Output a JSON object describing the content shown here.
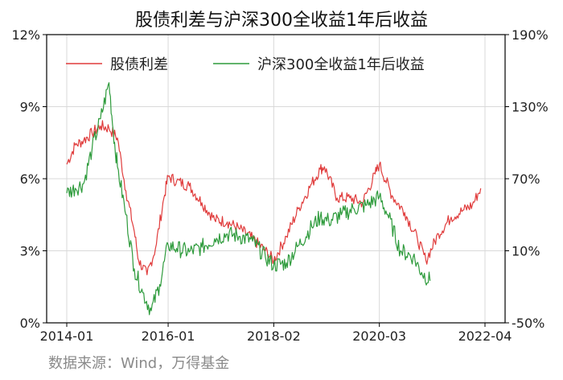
{
  "chart_data": {
    "type": "line",
    "title": "股债利差与沪深300全收益1年后收益",
    "source": "数据来源：Wind，万得基金",
    "x_ticks": [
      "2014-01",
      "2016-01",
      "2018-02",
      "2020-03",
      "2022-04"
    ],
    "y_left": {
      "ticks": [
        "0%",
        "3%",
        "6%",
        "9%",
        "12%"
      ],
      "lim": [
        0,
        12
      ]
    },
    "y_right": {
      "ticks": [
        "-50%",
        "10%",
        "70%",
        "130%",
        "190%"
      ],
      "lim": [
        -50,
        190
      ]
    },
    "legend_position": "top",
    "grid": true,
    "series": [
      {
        "name": "股债利差",
        "axis": "left",
        "color": "#e03c3c",
        "x": [
          "2014-01",
          "2014-03",
          "2014-05",
          "2014-07",
          "2014-09",
          "2014-11",
          "2015-01",
          "2015-03",
          "2015-05",
          "2015-06",
          "2015-08",
          "2015-10",
          "2015-12",
          "2016-01",
          "2016-03",
          "2016-06",
          "2016-09",
          "2016-12",
          "2017-03",
          "2017-06",
          "2017-09",
          "2017-12",
          "2018-02",
          "2018-05",
          "2018-08",
          "2018-11",
          "2019-01",
          "2019-02",
          "2019-05",
          "2019-08",
          "2019-11",
          "2020-02",
          "2020-03",
          "2020-06",
          "2020-09",
          "2020-12",
          "2021-02",
          "2021-05",
          "2021-08",
          "2021-11",
          "2022-01",
          "2022-03"
        ],
        "values": [
          6.6,
          7.4,
          7.6,
          7.9,
          8.2,
          8.1,
          7.7,
          5.5,
          3.8,
          2.6,
          2.0,
          3.1,
          5.2,
          6.1,
          5.9,
          5.7,
          5.0,
          4.3,
          4.2,
          3.9,
          3.5,
          3.0,
          2.6,
          3.6,
          4.8,
          5.8,
          6.4,
          6.5,
          5.2,
          5.2,
          5.0,
          6.2,
          6.6,
          5.3,
          4.6,
          3.5,
          2.6,
          3.7,
          4.4,
          4.7,
          4.9,
          5.6
        ]
      },
      {
        "name": "沪深300全收益1年后收益",
        "axis": "right",
        "color": "#2e9b3c",
        "x": [
          "2014-01",
          "2014-03",
          "2014-05",
          "2014-07",
          "2014-09",
          "2014-11",
          "2014-12",
          "2015-01",
          "2015-03",
          "2015-05",
          "2015-07",
          "2015-09",
          "2015-11",
          "2016-01",
          "2016-03",
          "2016-06",
          "2016-09",
          "2016-12",
          "2017-03",
          "2017-06",
          "2017-09",
          "2017-12",
          "2018-02",
          "2018-05",
          "2018-08",
          "2018-11",
          "2019-01",
          "2019-03",
          "2019-06",
          "2019-09",
          "2019-12",
          "2020-03",
          "2020-05",
          "2020-08",
          "2020-11",
          "2021-01",
          "2021-03"
        ],
        "values": [
          58,
          62,
          66,
          95,
          120,
          150,
          110,
          80,
          40,
          -5,
          -25,
          -40,
          -18,
          15,
          12,
          9,
          13,
          20,
          24,
          22,
          18,
          5,
          -2,
          0,
          15,
          30,
          38,
          35,
          40,
          45,
          48,
          55,
          40,
          10,
          5,
          -8,
          -15
        ]
      }
    ]
  }
}
